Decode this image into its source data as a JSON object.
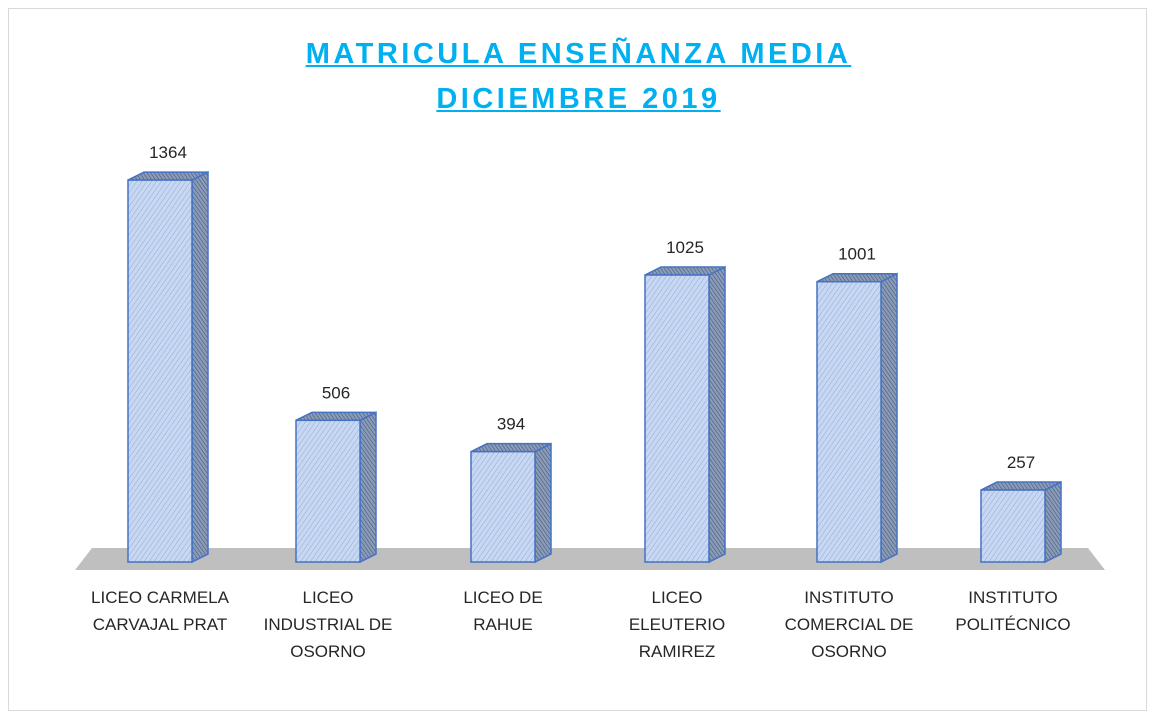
{
  "chart_data": {
    "type": "bar3d",
    "title": [
      "MATRICULA ENSEÑANZA MEDIA",
      "DICIEMBRE 2019"
    ],
    "categories": [
      "LICEO CARMELA CARVAJAL PRAT",
      "LICEO INDUSTRIAL DE OSORNO",
      "LICEO DE RAHUE",
      "LICEO ELEUTERIO RAMIREZ",
      "INSTITUTO COMERCIAL DE OSORNO",
      "INSTITUTO POLITÉCNICO"
    ],
    "values": [
      1364,
      506,
      394,
      1025,
      1001,
      257
    ],
    "color": "#c9d8f2",
    "edge_color": "#4472c4",
    "title_color": "#00b0f0",
    "ylim": [
      0,
      1400
    ]
  }
}
